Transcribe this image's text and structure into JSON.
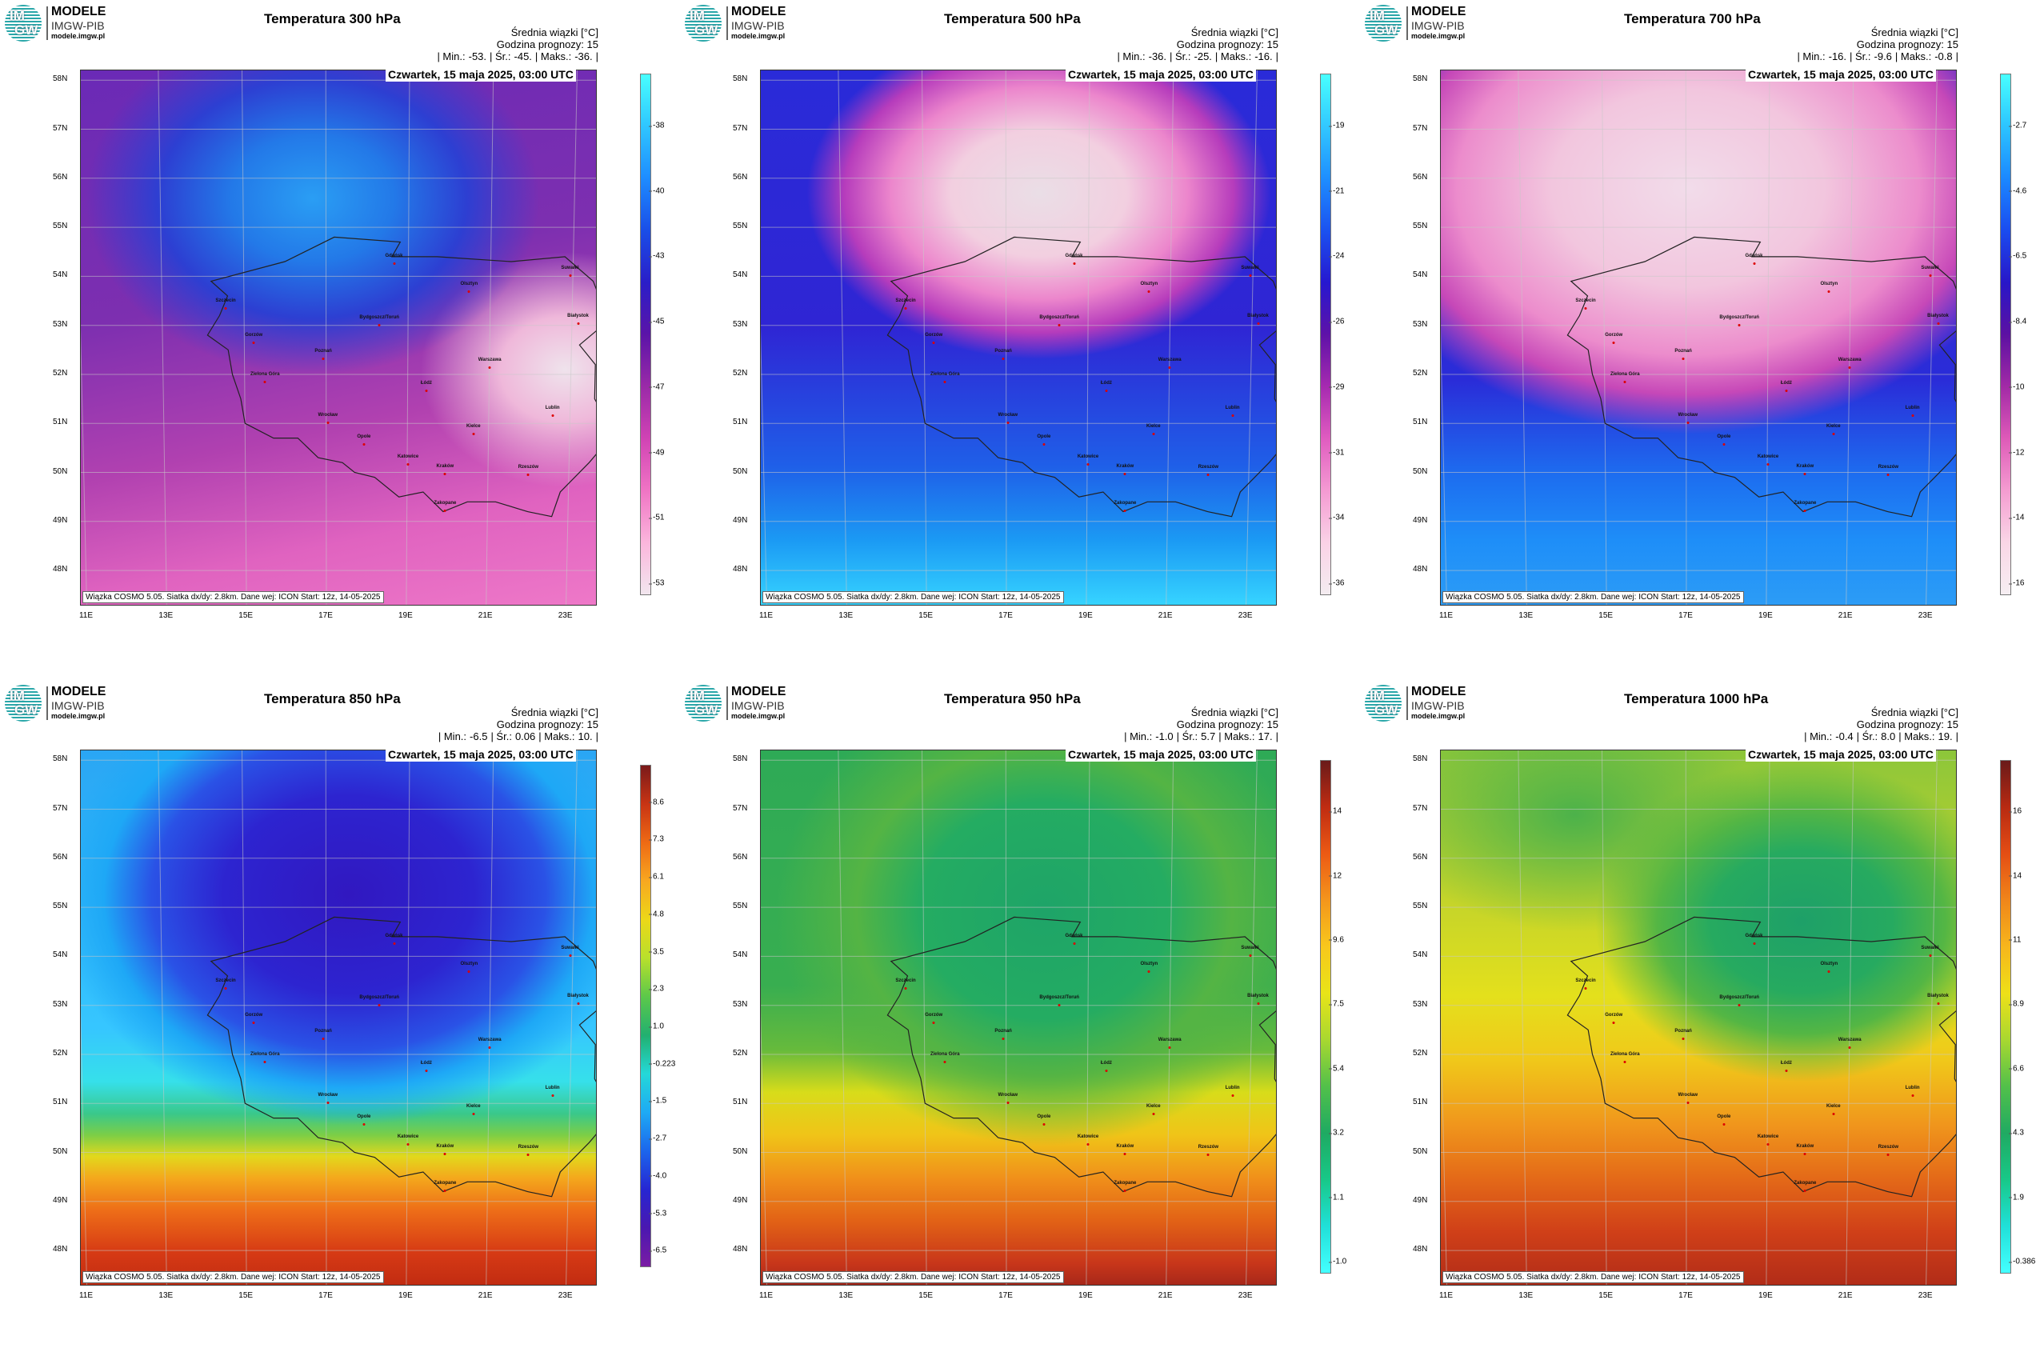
{
  "logo": {
    "line1": "MODELE",
    "line2": "IMGW-PIB",
    "line3": "modele.imgw.pl",
    "mark_top": "IM",
    "mark_bottom": "GW"
  },
  "common": {
    "subtitle": "Średnia wiązki [°C]",
    "forecast_hour": "Godzina prognozy: 15",
    "date": "Czwartek, 15 maja 2025, 03:00 UTC",
    "min_label": "| Min.:",
    "avg_label": "| Śr.:",
    "max_label": "| Maks.:",
    "end_label": "|",
    "footer": "Wiązka COSMO 5.05. Siatka dx/dy: 2.8km. Dane wej: ICON Start: 12z, 14-05-2025",
    "lat_labels": [
      "58N",
      "57N",
      "56N",
      "55N",
      "54N",
      "53N",
      "52N",
      "51N",
      "50N",
      "49N",
      "48N"
    ],
    "lon_labels": [
      "11E",
      "13E",
      "15E",
      "17E",
      "19E",
      "21E",
      "23E"
    ]
  },
  "cities": [
    {
      "name": "Gdańsk",
      "lon": 18.65,
      "lat": 54.35
    },
    {
      "name": "Olsztyn",
      "lon": 20.48,
      "lat": 53.78
    },
    {
      "name": "Suwałki",
      "lon": 22.93,
      "lat": 54.1
    },
    {
      "name": "Białystok",
      "lon": 23.15,
      "lat": 53.13
    },
    {
      "name": "Szczecin",
      "lon": 14.55,
      "lat": 53.43
    },
    {
      "name": "Bydgoszcz/Toruń",
      "lon": 18.3,
      "lat": 53.1
    },
    {
      "name": "Gorzów",
      "lon": 15.23,
      "lat": 52.73
    },
    {
      "name": "Poznań",
      "lon": 16.93,
      "lat": 52.4
    },
    {
      "name": "Warszawa",
      "lon": 21.01,
      "lat": 52.23
    },
    {
      "name": "Zielona Góra",
      "lon": 15.5,
      "lat": 51.94
    },
    {
      "name": "Łódź",
      "lon": 19.46,
      "lat": 51.76
    },
    {
      "name": "Lublin",
      "lon": 22.57,
      "lat": 51.25
    },
    {
      "name": "Wrocław",
      "lon": 17.04,
      "lat": 51.11
    },
    {
      "name": "Kielce",
      "lon": 20.63,
      "lat": 50.87
    },
    {
      "name": "Opole",
      "lon": 17.93,
      "lat": 50.67
    },
    {
      "name": "Katowice",
      "lon": 19.02,
      "lat": 50.26
    },
    {
      "name": "Kraków",
      "lon": 19.94,
      "lat": 50.06
    },
    {
      "name": "Rzeszów",
      "lon": 22.0,
      "lat": 50.04
    },
    {
      "name": "Zakopane",
      "lon": 19.95,
      "lat": 49.3
    }
  ],
  "panels": [
    {
      "title": "Temperatura 300 hPa",
      "min": "-53.",
      "avg": "-45.",
      "max": "-36.",
      "colorbar_ticks": [
        "-38",
        "-40",
        "-43",
        "-45",
        "-47",
        "-49",
        "-51",
        "-53"
      ],
      "colorbar_colors": [
        "#48ffff",
        "#2fc6ff",
        "#1e8cff",
        "#1a4ee8",
        "#2a1ec8",
        "#5b14a8",
        "#9a2aa8",
        "#d043b4",
        "#f074c4",
        "#fbb6dc",
        "#f2e6ee"
      ],
      "field_bg": "radial-gradient(ellipse 44% 33% at 45% 24%, #2a9ef4 0%, #2379e8 36%, #2d3fd2 68%, rgba(84,36,190,0) 100%), radial-gradient(ellipse 28% 22% at 94% 56%, #efe3ec 0%, #efb8da 45%, rgba(226,100,190,0) 100%), linear-gradient(168deg, #6a2ab6 0%, #7d2fb0 40%, #b141b0 64%, #e063c0 82%, #ee78c8 100%)"
    },
    {
      "title": "Temperatura 500 hPa",
      "min": "-36.",
      "avg": "-25.",
      "max": "-16.",
      "colorbar_ticks": [
        "-19",
        "-21",
        "-24",
        "-26",
        "-29",
        "-31",
        "-34",
        "-36"
      ],
      "colorbar_colors": [
        "#48ffff",
        "#32c8ff",
        "#1e8eff",
        "#1b52f0",
        "#2618d0",
        "#5e12a8",
        "#a62ab0",
        "#e05cc0",
        "#f49ad2",
        "#fad2e6",
        "#f4ecf0"
      ],
      "field_bg": "radial-gradient(ellipse 45% 31% at 54% 23%, #eadee6 0%, #f2cfe0 38%, #ec86cc 64%, #b63cbc 84%, rgba(60,24,210,0) 100%), linear-gradient(180deg, #2a2bd8 0%, #2f25d4 48%, #1f5fe8 74%, #1b9af4 88%, #36d4ff 100%)"
    },
    {
      "title": "Temperatura 700 hPa",
      "min": "-16.",
      "avg": "-9.6",
      "max": "-0.8",
      "colorbar_ticks": [
        "-2.7",
        "-4.6",
        "-6.5",
        "-8.4",
        "-10",
        "-12",
        "-14",
        "-16"
      ],
      "colorbar_colors": [
        "#48ffff",
        "#2cc4ff",
        "#1b88ff",
        "#1a4cef",
        "#2817c8",
        "#5c11a2",
        "#a22aa6",
        "#de5ab8",
        "#f49cd0",
        "#fad6e6",
        "#f6eef2"
      ],
      "field_bg": "radial-gradient(ellipse 66% 46% at 48% 22%, #f2dcea 0%, #f2c6de 40%, #ec8ccc 68%, #c648b8 84%, rgba(60,24,210,0) 100%), linear-gradient(180deg, #3a28cc 0%, #2a2cd8 58%, #1d6ef0 76%, #1e8ef8 88%, #2c9cf6 100%)"
    },
    {
      "title": "Temperatura 850 hPa",
      "min": "-6.5",
      "avg": "0.06",
      "max": "10.",
      "colorbar_ticks": [
        "8.6",
        "7.3",
        "6.1",
        "4.8",
        "3.5",
        "2.3",
        "1.0",
        "-0.223",
        "-1.5",
        "-2.7",
        "-4.0",
        "-5.3",
        "-6.5"
      ],
      "colorbar_colors": [
        "#7a1a1a",
        "#c83414",
        "#ee6a14",
        "#f8a820",
        "#ecd818",
        "#b8e02c",
        "#5cc84a",
        "#22b070",
        "#24d8d8",
        "#1eaaf4",
        "#1c66ec",
        "#2626d2",
        "#4a18b0",
        "#7a1ca4"
      ],
      "field_bg": "radial-gradient(ellipse 58% 44% at 52% 27%, #3118c0 0%, #2d24d0 42%, #2a52e6 66%, #1ea8f6 82%, rgba(40,220,255,0) 98%), linear-gradient(180deg, #2aa6f4 0%, #36c6ff 52%, #36e0ea 62%, #3ac88a 68%, #7cce46 72%, #e2d81c 76%, #f4a81c 80%, #ee6e18 86%, #d63a14 94%, #c22c12 100%)"
    },
    {
      "title": "Temperatura 950 hPa",
      "min": "-1.0",
      "avg": "5.7",
      "max": "17.",
      "colorbar_ticks": [
        "14",
        "12",
        "9.6",
        "7.5",
        "5.4",
        "3.2",
        "1.1",
        "-1.0"
      ],
      "colorbar_colors": [
        "#6a1a1a",
        "#c02c12",
        "#ec5a14",
        "#f4961c",
        "#f8c81c",
        "#e8e418",
        "#a8d830",
        "#52c04a",
        "#1eaa62",
        "#18c888",
        "#20e0d8",
        "#44ffff"
      ],
      "field_bg": "radial-gradient(ellipse 52% 44% at 55% 30%, #1ea468 0%, #24ac62 46%, #54b444 70%, rgba(120,200,50,0) 100%), linear-gradient(180deg, #2eaa56 0%, #38ae50 44%, #66ba3c 56%, #d8dc1a 64%, #f0c418 72%, #f0901a 80%, #e26216 88%, #c8361a 96%, #a8281a 100%)"
    },
    {
      "title": "Temperatura 1000 hPa",
      "min": "-0.4",
      "avg": "8.0",
      "max": "19.",
      "colorbar_ticks": [
        "16",
        "14",
        "11",
        "8.9",
        "6.6",
        "4.3",
        "1.9",
        "-0.386"
      ],
      "colorbar_colors": [
        "#6a1a1a",
        "#b82a12",
        "#e44e14",
        "#f0861a",
        "#f6b61c",
        "#eee018",
        "#a8d830",
        "#52c04a",
        "#20aa62",
        "#18c888",
        "#20e0d8",
        "#44ffff"
      ],
      "field_bg": "radial-gradient(ellipse 40% 30% at 70% 32%, #1ea068 0%, #26aa60 44%, #54b644 70%, rgba(140,205,50,0) 100%), radial-gradient(ellipse 36% 22% at 26% 12%, #4cb24a 0%, rgba(90,180,70,0) 100%), linear-gradient(180deg, #8cc63a 0%, #c4d42a 28%, #e4e01c 46%, #f0c81a 58%, #f0961c 70%, #e46a18 80%, #d04018 90%, #b22c18 100%)"
    }
  ]
}
